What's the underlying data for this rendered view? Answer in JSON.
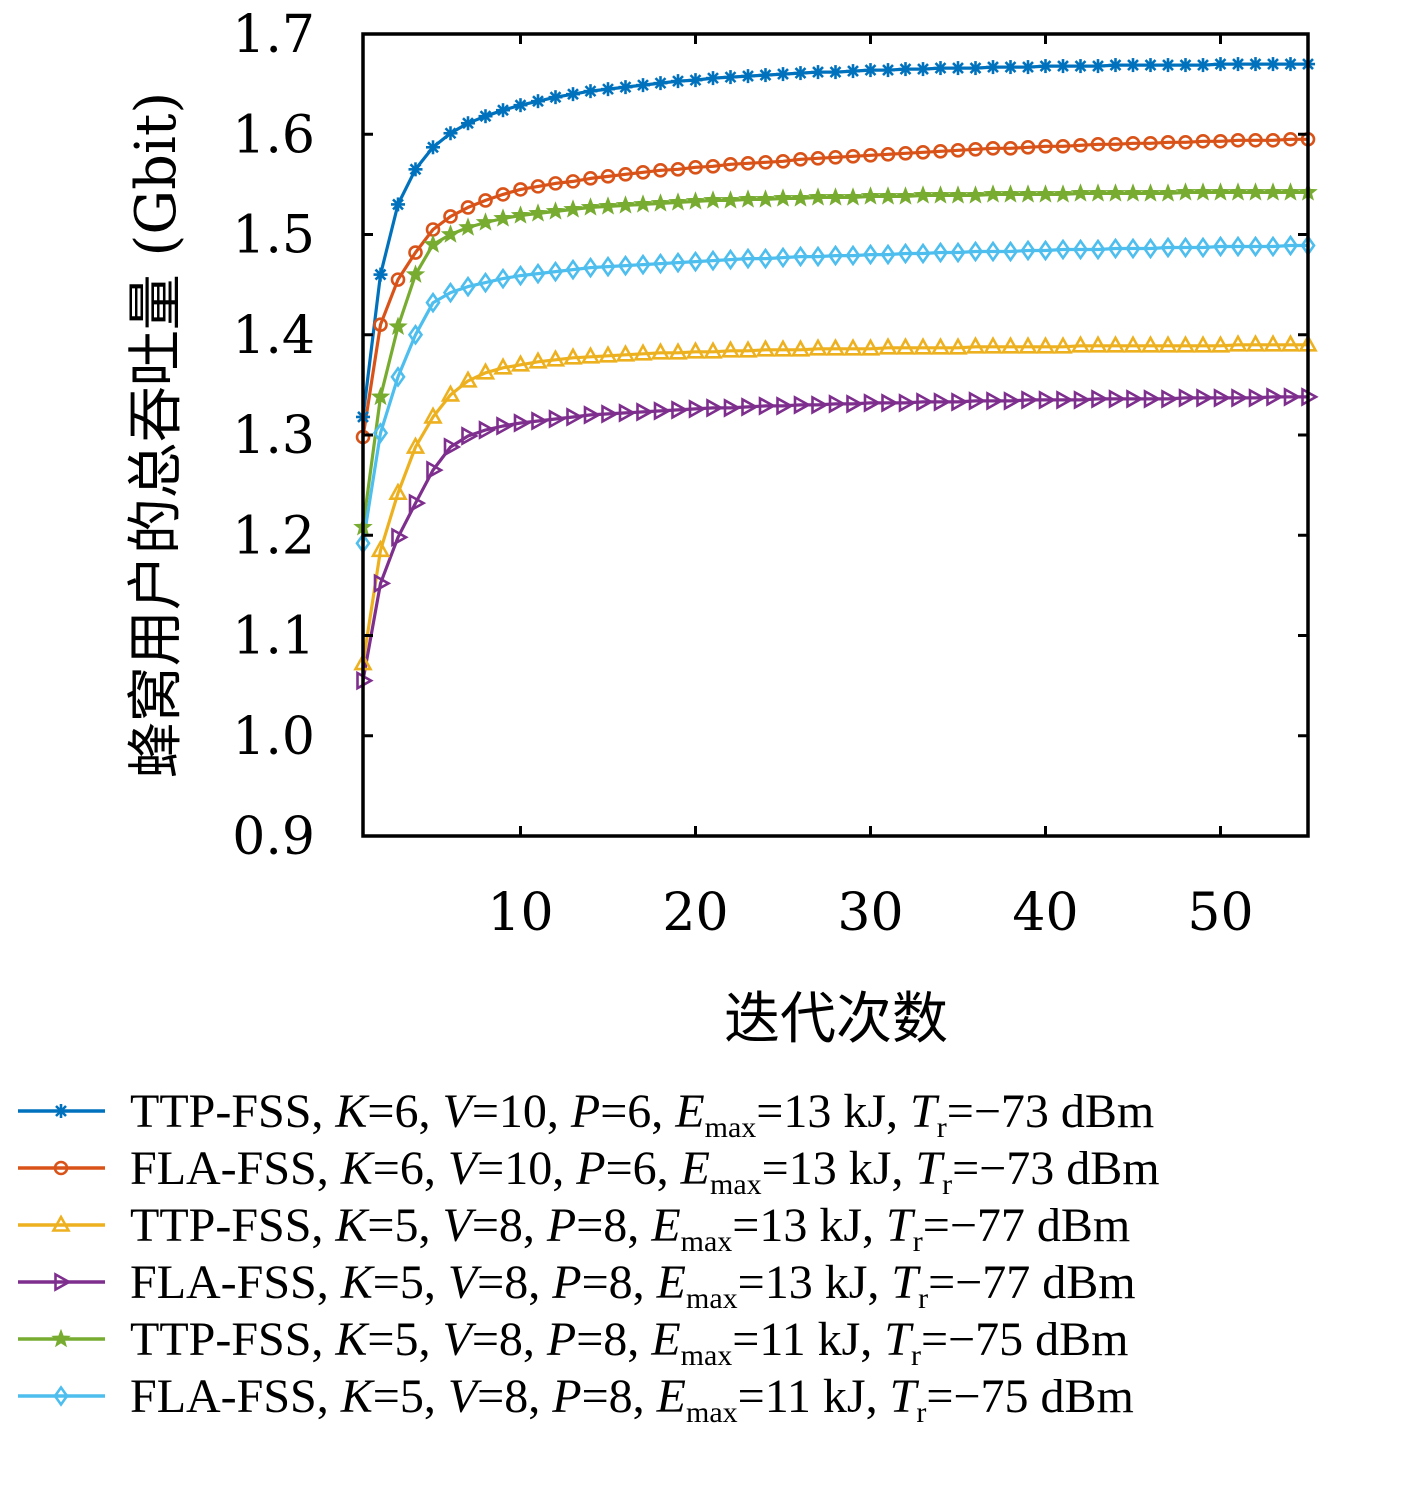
{
  "chart_data": {
    "type": "line",
    "title": "",
    "xlabel": "迭代次数",
    "ylabel": "蜂窝用户的总吞吐量 (Gbit)",
    "xlim": [
      1,
      55
    ],
    "ylim": [
      0.9,
      1.7
    ],
    "xticks": [
      10,
      20,
      30,
      40,
      50
    ],
    "xtick_labels": [
      "10",
      "20",
      "30",
      "40",
      "50"
    ],
    "yticks": [
      0.9,
      1.0,
      1.1,
      1.2,
      1.3,
      1.4,
      1.5,
      1.6,
      1.7
    ],
    "ytick_labels": [
      "0.9",
      "1.0",
      "1.1",
      "1.2",
      "1.3",
      "1.4",
      "1.5",
      "1.6",
      "1.7"
    ],
    "grid": false,
    "legend_position": "bottom",
    "x": [
      1,
      2,
      3,
      4,
      5,
      6,
      7,
      8,
      9,
      10,
      11,
      12,
      13,
      14,
      15,
      16,
      17,
      18,
      19,
      20,
      21,
      22,
      23,
      24,
      25,
      26,
      27,
      28,
      29,
      30,
      31,
      32,
      33,
      34,
      35,
      36,
      37,
      38,
      39,
      40,
      41,
      42,
      43,
      44,
      45,
      46,
      47,
      48,
      49,
      50,
      51,
      52,
      53,
      54,
      55
    ],
    "series": [
      {
        "color": "#0072BD",
        "marker": "asterisk",
        "label": {
          "algo": "TTP-FSS",
          "K": "6",
          "V": "10",
          "P": "6",
          "E": "13",
          "T": "−73"
        },
        "values": [
          1.318,
          1.46,
          1.53,
          1.565,
          1.587,
          1.601,
          1.611,
          1.618,
          1.624,
          1.629,
          1.633,
          1.637,
          1.64,
          1.643,
          1.645,
          1.647,
          1.649,
          1.651,
          1.653,
          1.654,
          1.656,
          1.657,
          1.658,
          1.659,
          1.66,
          1.661,
          1.662,
          1.662,
          1.663,
          1.664,
          1.664,
          1.665,
          1.665,
          1.666,
          1.666,
          1.666,
          1.667,
          1.667,
          1.667,
          1.668,
          1.668,
          1.668,
          1.668,
          1.669,
          1.669,
          1.669,
          1.669,
          1.669,
          1.669,
          1.67,
          1.67,
          1.67,
          1.67,
          1.67,
          1.67
        ]
      },
      {
        "color": "#D95319",
        "marker": "circle",
        "label": {
          "algo": "FLA-FSS",
          "K": "6",
          "V": "10",
          "P": "6",
          "E": "13",
          "T": "−73"
        },
        "values": [
          1.298,
          1.41,
          1.455,
          1.482,
          1.505,
          1.518,
          1.527,
          1.534,
          1.54,
          1.545,
          1.548,
          1.551,
          1.553,
          1.556,
          1.558,
          1.56,
          1.562,
          1.564,
          1.565,
          1.567,
          1.568,
          1.57,
          1.571,
          1.572,
          1.573,
          1.575,
          1.576,
          1.577,
          1.578,
          1.579,
          1.58,
          1.581,
          1.582,
          1.583,
          1.584,
          1.585,
          1.586,
          1.586,
          1.587,
          1.588,
          1.588,
          1.589,
          1.59,
          1.59,
          1.591,
          1.591,
          1.592,
          1.592,
          1.593,
          1.593,
          1.594,
          1.594,
          1.594,
          1.595,
          1.595
        ]
      },
      {
        "color": "#EDB120",
        "marker": "triangle-up",
        "label": {
          "algo": "TTP-FSS",
          "K": "5",
          "V": "8",
          "P": "8",
          "E": "13",
          "T": "−77"
        },
        "values": [
          1.072,
          1.185,
          1.242,
          1.288,
          1.318,
          1.34,
          1.354,
          1.362,
          1.367,
          1.37,
          1.373,
          1.375,
          1.377,
          1.378,
          1.379,
          1.38,
          1.381,
          1.382,
          1.382,
          1.383,
          1.383,
          1.384,
          1.384,
          1.385,
          1.385,
          1.385,
          1.386,
          1.386,
          1.386,
          1.386,
          1.387,
          1.387,
          1.387,
          1.387,
          1.387,
          1.388,
          1.388,
          1.388,
          1.388,
          1.388,
          1.388,
          1.389,
          1.389,
          1.389,
          1.389,
          1.389,
          1.389,
          1.389,
          1.389,
          1.389,
          1.39,
          1.39,
          1.39,
          1.39,
          1.39
        ]
      },
      {
        "color": "#7E2F8E",
        "marker": "triangle-right",
        "label": {
          "algo": "FLA-FSS",
          "K": "5",
          "V": "8",
          "P": "8",
          "E": "13",
          "T": "−77"
        },
        "values": [
          1.055,
          1.152,
          1.198,
          1.232,
          1.265,
          1.288,
          1.299,
          1.305,
          1.309,
          1.312,
          1.314,
          1.316,
          1.318,
          1.32,
          1.321,
          1.322,
          1.323,
          1.324,
          1.325,
          1.326,
          1.327,
          1.327,
          1.328,
          1.329,
          1.329,
          1.33,
          1.33,
          1.331,
          1.331,
          1.332,
          1.332,
          1.332,
          1.333,
          1.333,
          1.333,
          1.334,
          1.334,
          1.334,
          1.335,
          1.335,
          1.335,
          1.335,
          1.336,
          1.336,
          1.336,
          1.336,
          1.336,
          1.337,
          1.337,
          1.337,
          1.337,
          1.337,
          1.338,
          1.338,
          1.338
        ]
      },
      {
        "color": "#77AC30",
        "marker": "star",
        "label": {
          "algo": "TTP-FSS",
          "K": "5",
          "V": "8",
          "P": "8",
          "E": "11",
          "T": "−75"
        },
        "values": [
          1.208,
          1.338,
          1.408,
          1.46,
          1.49,
          1.5,
          1.507,
          1.512,
          1.516,
          1.519,
          1.521,
          1.523,
          1.525,
          1.527,
          1.528,
          1.529,
          1.53,
          1.531,
          1.532,
          1.533,
          1.534,
          1.534,
          1.535,
          1.535,
          1.536,
          1.536,
          1.537,
          1.537,
          1.537,
          1.538,
          1.538,
          1.538,
          1.539,
          1.539,
          1.539,
          1.539,
          1.54,
          1.54,
          1.54,
          1.54,
          1.54,
          1.541,
          1.541,
          1.541,
          1.541,
          1.541,
          1.541,
          1.542,
          1.542,
          1.542,
          1.542,
          1.542,
          1.542,
          1.542,
          1.542
        ]
      },
      {
        "color": "#4DBEEE",
        "marker": "diamond",
        "label": {
          "algo": "FLA-FSS",
          "K": "5",
          "V": "8",
          "P": "8",
          "E": "11",
          "T": "−75"
        },
        "values": [
          1.192,
          1.302,
          1.358,
          1.4,
          1.432,
          1.442,
          1.448,
          1.452,
          1.456,
          1.459,
          1.461,
          1.463,
          1.465,
          1.467,
          1.468,
          1.469,
          1.47,
          1.471,
          1.472,
          1.473,
          1.474,
          1.475,
          1.476,
          1.476,
          1.477,
          1.478,
          1.478,
          1.479,
          1.479,
          1.48,
          1.48,
          1.481,
          1.481,
          1.482,
          1.482,
          1.483,
          1.483,
          1.483,
          1.484,
          1.484,
          1.485,
          1.485,
          1.485,
          1.486,
          1.486,
          1.486,
          1.487,
          1.487,
          1.487,
          1.488,
          1.488,
          1.488,
          1.488,
          1.489,
          1.489
        ]
      }
    ]
  },
  "legend_text": {
    "K_sym": "K",
    "V_sym": "V",
    "P_sym": "P",
    "E_sym": "E",
    "E_sub": "max",
    "T_sym": "T",
    "T_sub": "r",
    "unit_E": "kJ",
    "unit_T": "dBm"
  }
}
